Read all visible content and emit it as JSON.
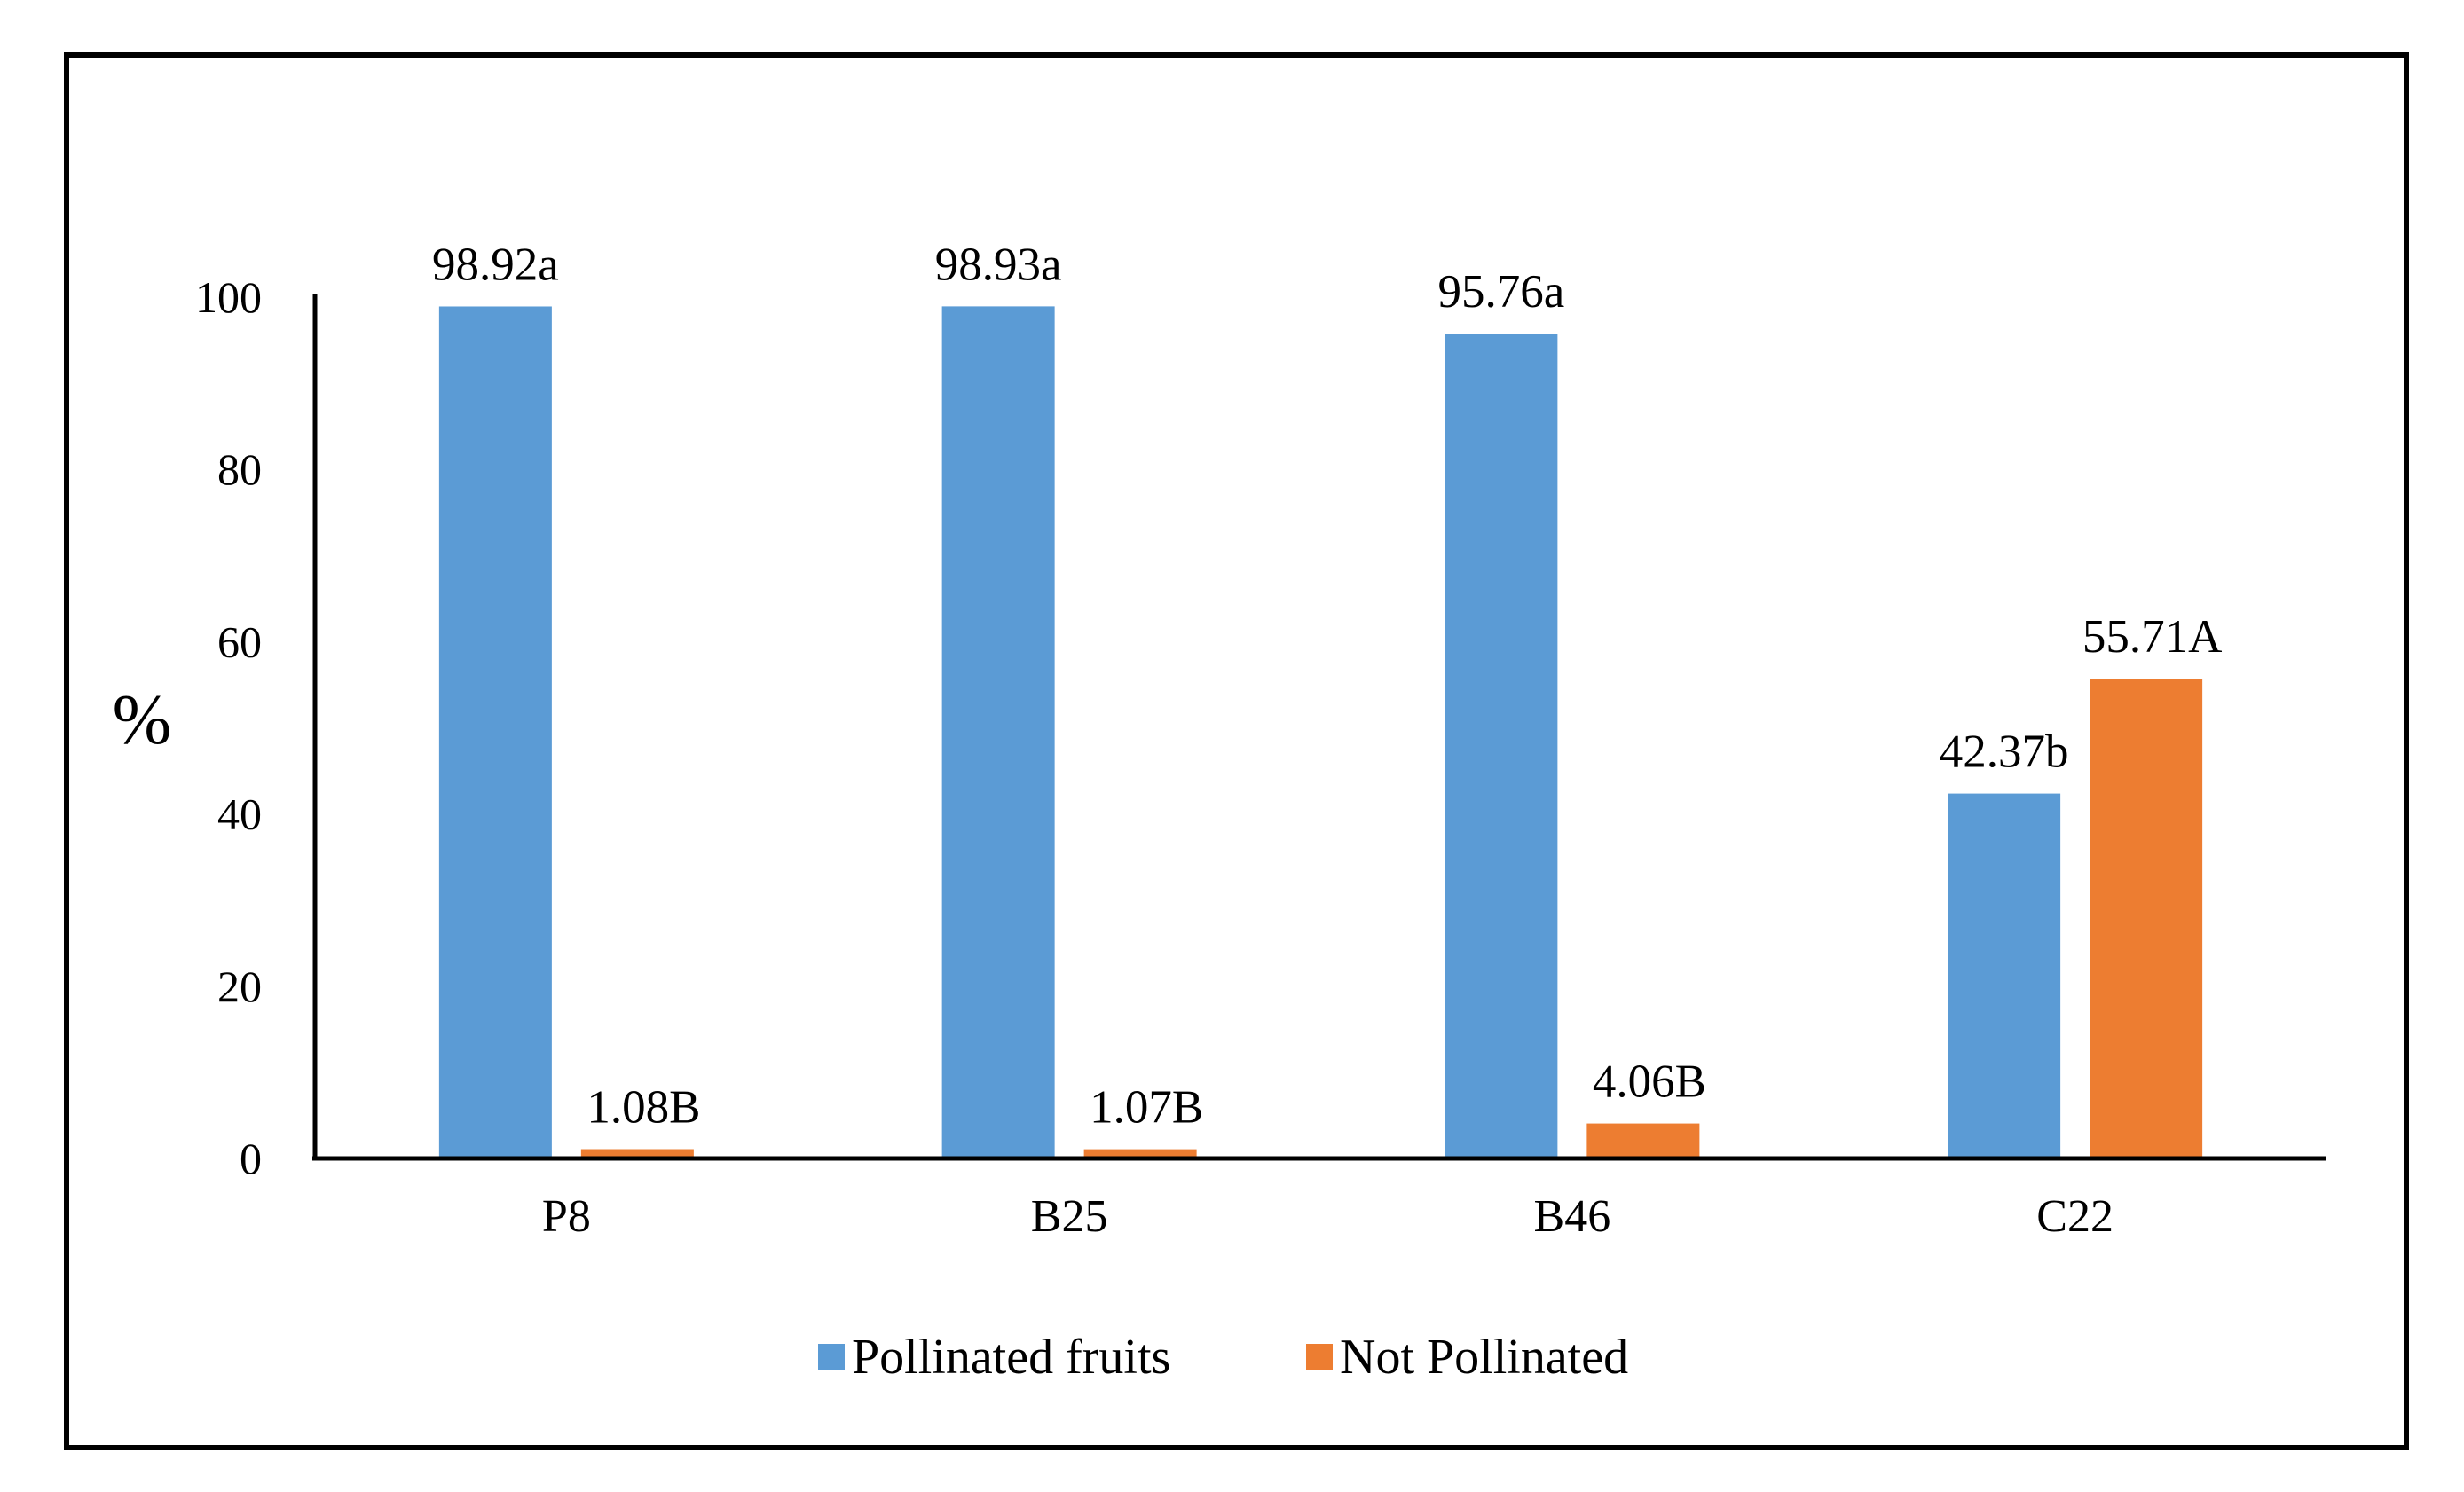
{
  "chart_data": {
    "type": "bar",
    "title": "",
    "xlabel": "",
    "ylabel": "%",
    "ylim": [
      0,
      100
    ],
    "yticks": [
      "0",
      "20",
      "40",
      "60",
      "80",
      "100"
    ],
    "categories": [
      "P8",
      "B25",
      "B46",
      "C22"
    ],
    "series": [
      {
        "name": "Pollinated fruits",
        "color": "#5B9BD5",
        "values": [
          98.92,
          98.93,
          95.76,
          42.37
        ],
        "labels": [
          "98.92a",
          "98.93a",
          "95.76a",
          "42.37b"
        ]
      },
      {
        "name": "Not Pollinated",
        "color": "#ED7D31",
        "values": [
          1.08,
          1.07,
          4.06,
          55.71
        ],
        "labels": [
          "1.08B",
          "1.07B",
          "4.06B",
          "55.71A"
        ]
      }
    ],
    "legend": "bottom",
    "grid": false
  }
}
